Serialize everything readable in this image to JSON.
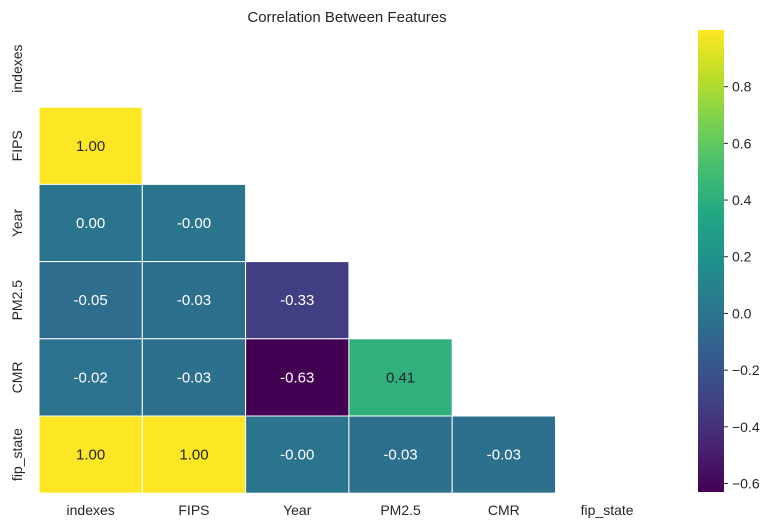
{
  "chart_data": {
    "type": "heatmap",
    "title": "Correlation Between Features",
    "xlabel": "",
    "ylabel": "",
    "x_labels": [
      "indexes",
      "FIPS",
      "Year",
      "PM2.5",
      "CMR",
      "fip_state"
    ],
    "y_labels": [
      "indexes",
      "FIPS",
      "Year",
      "PM2.5",
      "CMR",
      "fip_state"
    ],
    "mask": "upper-triangle-including-diagonal",
    "values": [
      [
        null,
        null,
        null,
        null,
        null,
        null
      ],
      [
        1.0,
        null,
        null,
        null,
        null,
        null
      ],
      [
        0.0,
        -0.0,
        null,
        null,
        null,
        null
      ],
      [
        -0.05,
        -0.03,
        -0.33,
        null,
        null,
        null
      ],
      [
        -0.02,
        -0.03,
        -0.63,
        0.41,
        null,
        null
      ],
      [
        1.0,
        1.0,
        -0.0,
        -0.03,
        -0.03,
        null
      ]
    ],
    "annotations": [
      [
        null,
        null,
        null,
        null,
        null,
        null
      ],
      [
        "1.00",
        null,
        null,
        null,
        null,
        null
      ],
      [
        "0.00",
        "-0.00",
        null,
        null,
        null,
        null
      ],
      [
        "-0.05",
        "-0.03",
        "-0.33",
        null,
        null,
        null
      ],
      [
        "-0.02",
        "-0.03",
        "-0.63",
        "0.41",
        null,
        null
      ],
      [
        "1.00",
        "1.00",
        "-0.00",
        "-0.03",
        "-0.03",
        null
      ]
    ],
    "colormap": "viridis",
    "vmin": -0.63,
    "vmax": 1.0,
    "colorbar": {
      "ticks": [
        -0.6,
        -0.4,
        -0.2,
        0.0,
        0.2,
        0.4,
        0.6,
        0.8
      ],
      "tick_labels": [
        "−0.6",
        "−0.4",
        "−0.2",
        "0.0",
        "0.2",
        "0.4",
        "0.6",
        "0.8"
      ]
    },
    "grid": false,
    "legend": "colorbar-right"
  }
}
